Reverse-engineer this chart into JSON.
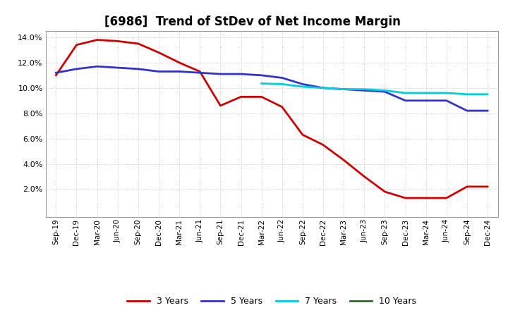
{
  "title": "[6986]  Trend of StDev of Net Income Margin",
  "title_fontsize": 12,
  "ylim": [
    -0.002,
    0.145
  ],
  "yticks": [
    0.02,
    0.04,
    0.06,
    0.08,
    0.1,
    0.12,
    0.14
  ],
  "background_color": "#ffffff",
  "plot_bg_color": "#ffffff",
  "grid_color": "#bbbbbb",
  "series": {
    "3y": {
      "color": "#cc0000",
      "label": "3 Years",
      "x": [
        "Sep-19",
        "Dec-19",
        "Mar-20",
        "Jun-20",
        "Sep-20",
        "Dec-20",
        "Mar-21",
        "Jun-21",
        "Sep-21",
        "Dec-21",
        "Mar-22",
        "Jun-22",
        "Sep-22",
        "Dec-22",
        "Mar-23",
        "Jun-23",
        "Sep-23",
        "Dec-23",
        "Mar-24",
        "Jun-24",
        "Sep-24",
        "Dec-24"
      ],
      "y": [
        0.11,
        0.134,
        0.138,
        0.137,
        0.135,
        0.128,
        0.12,
        0.113,
        0.086,
        0.093,
        0.093,
        0.085,
        0.063,
        0.055,
        0.043,
        0.03,
        0.018,
        0.013,
        0.013,
        0.013,
        0.022,
        0.022
      ]
    },
    "5y": {
      "color": "#3333cc",
      "label": "5 Years",
      "x": [
        "Sep-19",
        "Dec-19",
        "Mar-20",
        "Jun-20",
        "Sep-20",
        "Dec-20",
        "Mar-21",
        "Jun-21",
        "Sep-21",
        "Dec-21",
        "Mar-22",
        "Jun-22",
        "Sep-22",
        "Dec-22",
        "Mar-23",
        "Jun-23",
        "Sep-23",
        "Dec-23",
        "Mar-24",
        "Jun-24",
        "Sep-24",
        "Dec-24"
      ],
      "y": [
        0.112,
        0.115,
        0.117,
        0.116,
        0.115,
        0.113,
        0.113,
        0.112,
        0.111,
        0.111,
        0.11,
        0.108,
        0.103,
        0.1,
        0.099,
        0.098,
        0.097,
        0.09,
        0.09,
        0.09,
        0.082,
        0.082
      ]
    },
    "7y": {
      "color": "#00ccdd",
      "label": "7 Years",
      "x": [
        "Mar-22",
        "Jun-22",
        "Sep-22",
        "Dec-22",
        "Mar-23",
        "Jun-23",
        "Sep-23",
        "Dec-23",
        "Mar-24",
        "Jun-24",
        "Sep-24",
        "Dec-24"
      ],
      "y": [
        0.1035,
        0.103,
        0.101,
        0.1,
        0.099,
        0.099,
        0.098,
        0.096,
        0.096,
        0.096,
        0.095,
        0.095
      ]
    },
    "10y": {
      "color": "#336633",
      "label": "10 Years",
      "x": [],
      "y": []
    }
  },
  "xtick_labels": [
    "Sep-19",
    "Dec-19",
    "Mar-20",
    "Jun-20",
    "Sep-20",
    "Dec-20",
    "Mar-21",
    "Jun-21",
    "Sep-21",
    "Dec-21",
    "Mar-22",
    "Jun-22",
    "Sep-22",
    "Dec-22",
    "Mar-23",
    "Jun-23",
    "Sep-23",
    "Dec-23",
    "Mar-24",
    "Jun-24",
    "Sep-24",
    "Dec-24"
  ],
  "legend_colors": [
    "#cc0000",
    "#3333cc",
    "#00ccdd",
    "#336633"
  ],
  "legend_labels": [
    "3 Years",
    "5 Years",
    "7 Years",
    "10 Years"
  ]
}
